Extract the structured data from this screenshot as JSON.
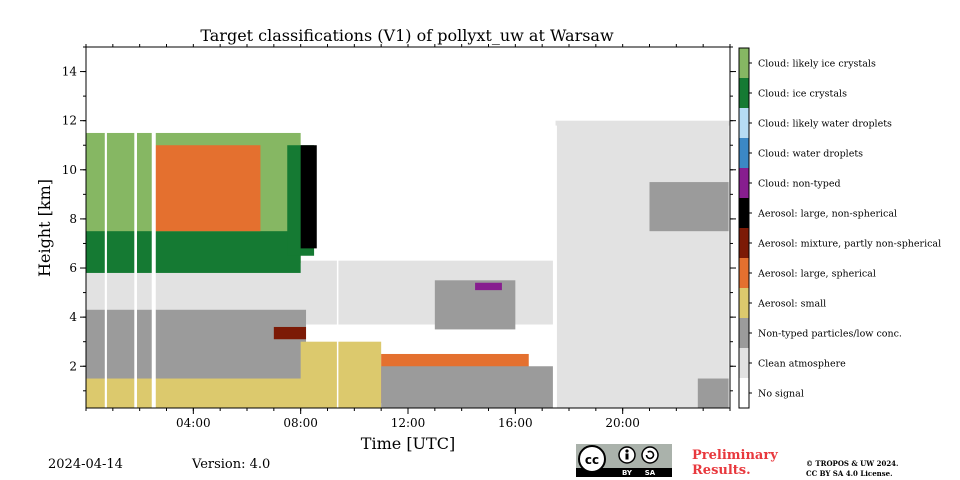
{
  "chart_data": {
    "type": "heatmap",
    "title": "Target classifications (V1) of pollyxt_uw at Warsaw",
    "xlabel": "Time [UTC]",
    "ylabel": "Height [km]",
    "x_range_hours": [
      0,
      24
    ],
    "y_range_km": [
      0.3,
      15
    ],
    "x_ticks": [
      {
        "value": 4,
        "label": "04:00"
      },
      {
        "value": 8,
        "label": "08:00"
      },
      {
        "value": 12,
        "label": "12:00"
      },
      {
        "value": 16,
        "label": "16:00"
      },
      {
        "value": 20,
        "label": "20:00"
      }
    ],
    "y_ticks": [
      {
        "value": 2,
        "label": "2"
      },
      {
        "value": 4,
        "label": "4"
      },
      {
        "value": 6,
        "label": "6"
      },
      {
        "value": 8,
        "label": "8"
      },
      {
        "value": 10,
        "label": "10"
      },
      {
        "value": 12,
        "label": "12"
      },
      {
        "value": 14,
        "label": "14"
      }
    ],
    "classes": [
      {
        "code": 0,
        "label": "No signal",
        "color": "#ffffff"
      },
      {
        "code": 1,
        "label": "Clean atmosphere",
        "color": "#e2e2e2"
      },
      {
        "code": 2,
        "label": "Non-typed particles/low conc.",
        "color": "#9b9b9b"
      },
      {
        "code": 3,
        "label": "Aerosol: small",
        "color": "#dcc96d"
      },
      {
        "code": 4,
        "label": "Aerosol: large, spherical",
        "color": "#e4702f"
      },
      {
        "code": 5,
        "label": "Aerosol: mixture, partly non-spherical",
        "color": "#7c1a06"
      },
      {
        "code": 6,
        "label": "Aerosol: large, non-spherical",
        "color": "#000000"
      },
      {
        "code": 7,
        "label": "Cloud: non-typed",
        "color": "#871e8f"
      },
      {
        "code": 8,
        "label": "Cloud: water droplets",
        "color": "#3b88c5"
      },
      {
        "code": 9,
        "label": "Cloud: likely water droplets",
        "color": "#b6dcf4"
      },
      {
        "code": 10,
        "label": "Cloud: ice crystals",
        "color": "#157a33"
      },
      {
        "code": 11,
        "label": "Cloud: likely ice crystals",
        "color": "#86b763"
      }
    ],
    "regions": [
      {
        "class": 1,
        "t0": 0.0,
        "t1": 17.4,
        "h0": 3.7,
        "h1": 6.3
      },
      {
        "class": 2,
        "t0": 0.0,
        "t1": 8.2,
        "h0": 1.0,
        "h1": 4.3
      },
      {
        "class": 3,
        "t0": 0.0,
        "t1": 10.5,
        "h0": 0.3,
        "h1": 1.5
      },
      {
        "class": 11,
        "t0": 0.0,
        "t1": 8.0,
        "h0": 6.2,
        "h1": 11.5
      },
      {
        "class": 10,
        "t0": 0.0,
        "t1": 8.0,
        "h0": 5.8,
        "h1": 7.5
      },
      {
        "class": 4,
        "t0": 2.5,
        "t1": 6.5,
        "h0": 7.5,
        "h1": 11.0
      },
      {
        "class": 10,
        "t0": 7.5,
        "t1": 8.5,
        "h0": 6.5,
        "h1": 11.0
      },
      {
        "class": 6,
        "t0": 8.0,
        "t1": 8.6,
        "h0": 6.8,
        "h1": 11.0
      },
      {
        "class": 3,
        "t0": 8.0,
        "t1": 11.0,
        "h0": 0.3,
        "h1": 3.0
      },
      {
        "class": 4,
        "t0": 11.0,
        "t1": 16.5,
        "h0": 0.5,
        "h1": 2.5
      },
      {
        "class": 2,
        "t0": 11.0,
        "t1": 17.4,
        "h0": 0.3,
        "h1": 2.0
      },
      {
        "class": 2,
        "t0": 13.0,
        "t1": 16.0,
        "h0": 3.5,
        "h1": 5.5
      },
      {
        "class": 1,
        "t0": 17.5,
        "t1": 24.0,
        "h0": 0.3,
        "h1": 12.0
      },
      {
        "class": 2,
        "t0": 21.0,
        "t1": 24.0,
        "h0": 7.5,
        "h1": 9.5
      },
      {
        "class": 2,
        "t0": 22.8,
        "t1": 24.0,
        "h0": 0.3,
        "h1": 1.5
      }
    ]
  },
  "footer": {
    "date": "2024-04-14",
    "version": "Version: 4.0",
    "preliminary_line1": "Preliminary",
    "preliminary_line2": "Results.",
    "copyright_line1": "© TROPOS & UW 2024.",
    "copyright_line2": "CC BY SA 4.0 License.",
    "license_by": "BY",
    "license_sa": "SA",
    "license_cc": "cc"
  }
}
